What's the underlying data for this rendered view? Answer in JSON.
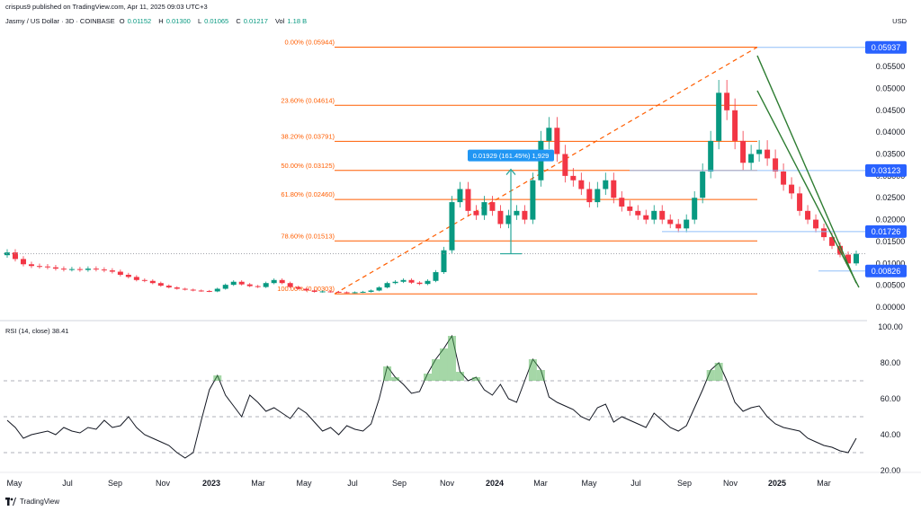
{
  "header": {
    "published": "crispus9 published on TradingView.com, Apr 11, 2025 09:03 UTC+3",
    "symbol": "Jasmy / US Dollar · 3D · COINBASE",
    "o_label": "O",
    "o_value": "0.01152",
    "h_label": "H",
    "h_value": "0.01300",
    "l_label": "L",
    "l_value": "0.01065",
    "c_label": "C",
    "c_value": "0.01217",
    "vol_label": "Vol",
    "vol_value": "1.18 B",
    "currency": "USD"
  },
  "rsi_header": {
    "label": "RSI (14, close)",
    "value": "38.41"
  },
  "footer": {
    "brand": "TradingView"
  },
  "colors": {
    "up": "#089981",
    "down": "#f23645",
    "fib": "#ff5d00",
    "rsi": "#131722",
    "trendline": "#2e7d32",
    "price_badge": "#2962ff",
    "measure": "#26a69a"
  },
  "chart_data": [
    {
      "type": "line",
      "title": "Jasmy / US Dollar · 3D · COINBASE",
      "ylabel": "USD",
      "ylim": [
        0,
        0.062
      ],
      "y_ticks": [
        "0.00000",
        "0.00500",
        "0.01000",
        "0.01500",
        "0.02000",
        "0.02500",
        "0.03000",
        "0.03500",
        "0.04000",
        "0.04500",
        "0.05000",
        "0.05500"
      ],
      "x_ticks": [
        "May",
        "Jul",
        "Sep",
        "Nov",
        "2023",
        "Mar",
        "May",
        "Jul",
        "Sep",
        "Nov",
        "2024",
        "Mar",
        "May",
        "Jul",
        "Sep",
        "Nov",
        "2025",
        "Mar"
      ],
      "x_start": "2022-05",
      "price_labels": [
        "0.05937",
        "0.03123",
        "0.01726",
        "0.00826"
      ],
      "series": [
        {
          "values": [
            0.0125,
            0.011,
            0.0098,
            0.0094,
            0.0093,
            0.0091,
            0.0088,
            0.0086,
            0.0087,
            0.0085,
            0.0088,
            0.0086,
            0.0084,
            0.0081,
            0.0074,
            0.0069,
            0.0062,
            0.006,
            0.0055,
            0.0049,
            0.0045,
            0.0042,
            0.004,
            0.0038,
            0.0037,
            0.0036,
            0.0042,
            0.0051,
            0.0058,
            0.0052,
            0.0048,
            0.0046,
            0.0055,
            0.0062,
            0.0055,
            0.0046,
            0.0042,
            0.0038,
            0.0035,
            0.0036,
            0.0035,
            0.0034,
            0.0033,
            0.0034,
            0.0035,
            0.0038,
            0.0045,
            0.0055,
            0.0058,
            0.0062,
            0.0056,
            0.0053,
            0.006,
            0.008,
            0.013,
            0.024,
            0.027,
            0.022,
            0.021,
            0.024,
            0.022,
            0.019,
            0.021,
            0.022,
            0.02,
            0.029,
            0.038,
            0.041,
            0.035,
            0.03,
            0.029,
            0.027,
            0.024,
            0.027,
            0.029,
            0.025,
            0.023,
            0.022,
            0.021,
            0.02,
            0.022,
            0.02,
            0.019,
            0.018,
            0.02,
            0.025,
            0.031,
            0.038,
            0.049,
            0.045,
            0.038,
            0.033,
            0.035,
            0.036,
            0.034,
            0.031,
            0.028,
            0.026,
            0.022,
            0.02,
            0.018,
            0.016,
            0.014,
            0.012,
            0.01,
            0.0122
          ]
        }
      ],
      "fib_levels": [
        {
          "ratio": "0.00%",
          "price": "0.05944",
          "label": "0.00% (0.05944)"
        },
        {
          "ratio": "23.60%",
          "price": "0.04614",
          "label": "23.60% (0.04614)"
        },
        {
          "ratio": "38.20%",
          "price": "0.03791",
          "label": "38.20% (0.03791)"
        },
        {
          "ratio": "50.00%",
          "price": "0.03125",
          "label": "50.00% (0.03125)"
        },
        {
          "ratio": "61.80%",
          "price": "0.02460",
          "label": "61.80% (0.02460)"
        },
        {
          "ratio": "78.60%",
          "price": "0.01513",
          "label": "78.60% (0.01513)"
        },
        {
          "ratio": "100.00%",
          "price": "0.00303",
          "label": "100.00% (0.00303)"
        }
      ],
      "annotations": [
        "0.01929 (161.45%) 1,929"
      ]
    },
    {
      "type": "line",
      "title": "RSI (14, close)",
      "ylim": [
        20,
        100
      ],
      "y_ticks": [
        "20.00",
        "40.00",
        "60.00",
        "80.00",
        "100.00"
      ],
      "levels": [
        70,
        50,
        30
      ],
      "series": [
        {
          "values": [
            48,
            44,
            38,
            40,
            41,
            42,
            40,
            44,
            42,
            41,
            44,
            43,
            48,
            44,
            45,
            50,
            44,
            40,
            38,
            36,
            34,
            30,
            27,
            30,
            48,
            65,
            73,
            62,
            56,
            50,
            62,
            58,
            53,
            55,
            52,
            49,
            55,
            52,
            47,
            42,
            44,
            40,
            45,
            43,
            42,
            46,
            60,
            78,
            72,
            68,
            63,
            64,
            74,
            82,
            88,
            95,
            75,
            70,
            72,
            65,
            62,
            68,
            60,
            58,
            70,
            82,
            76,
            61,
            58,
            56,
            54,
            50,
            48,
            55,
            57,
            47,
            50,
            48,
            46,
            44,
            52,
            48,
            44,
            42,
            45,
            55,
            65,
            76,
            80,
            70,
            58,
            53,
            55,
            56,
            50,
            46,
            44,
            43,
            42,
            38,
            36,
            34,
            33,
            31,
            30,
            38
          ]
        }
      ]
    }
  ]
}
